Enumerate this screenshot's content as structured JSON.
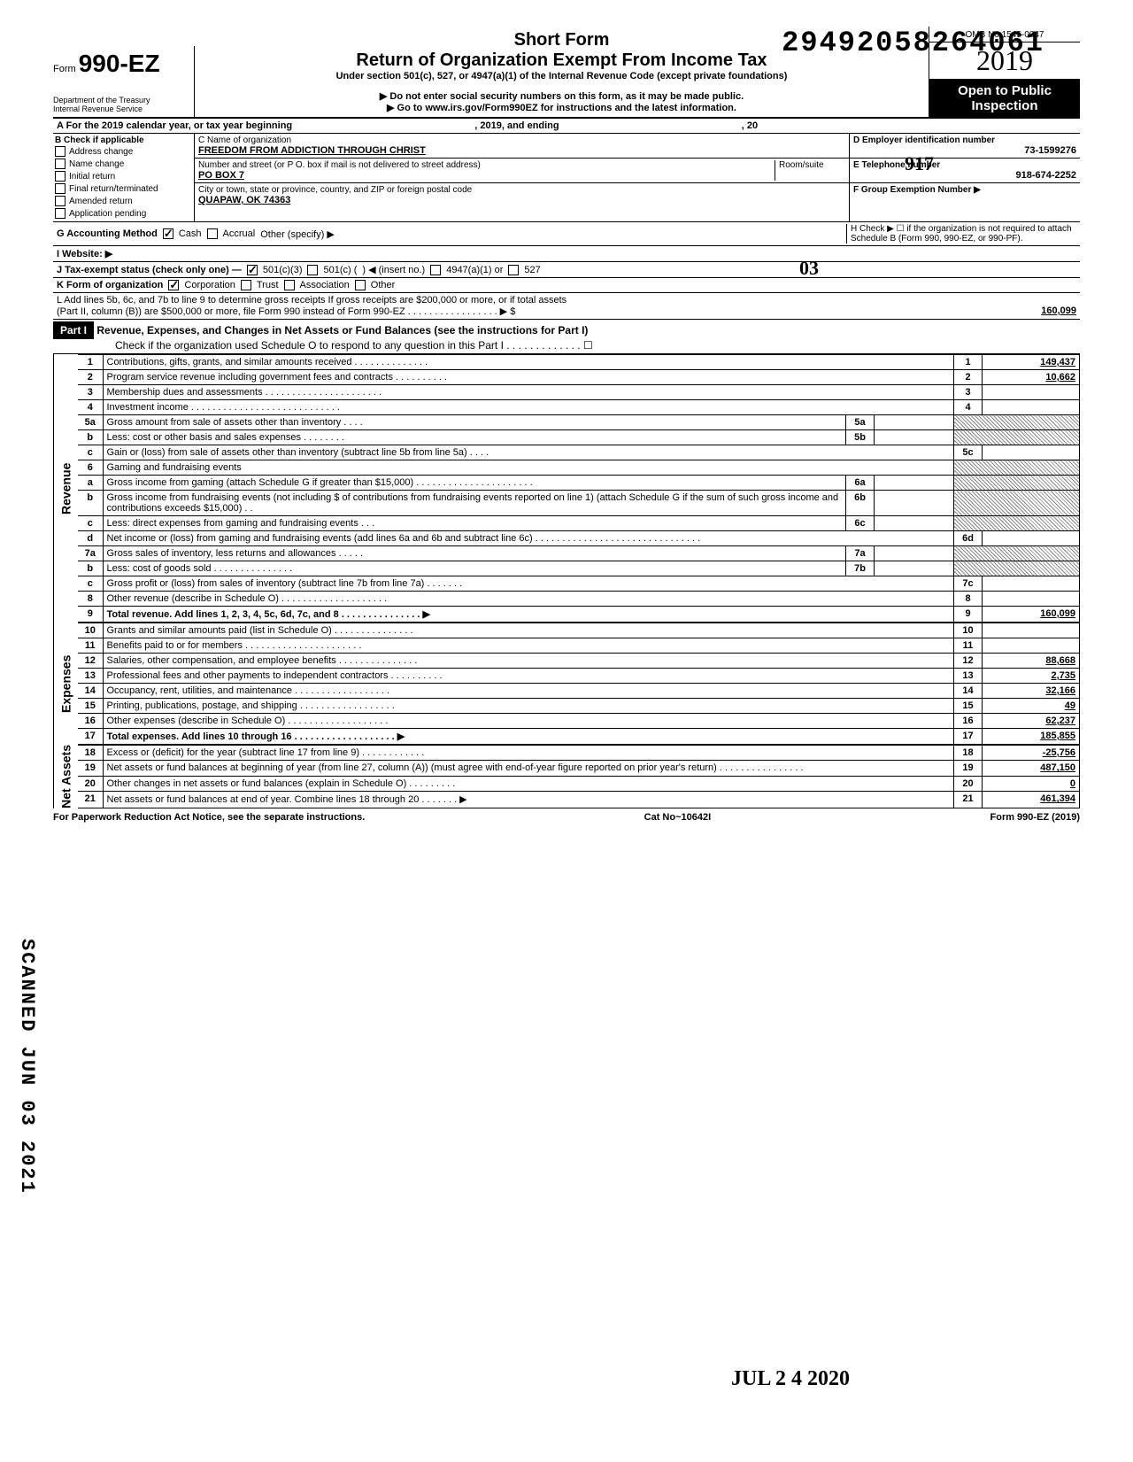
{
  "stamp_number": "29492058264061",
  "header": {
    "form_prefix": "Form",
    "form_number": "990-EZ",
    "short_title": "Short Form",
    "long_title": "Return of Organization Exempt From Income Tax",
    "subtitle": "Under section 501(c), 527, or 4947(a)(1) of the Internal Revenue Code (except private foundations)",
    "instr1": "▶ Do not enter social security numbers on this form, as it may be made public.",
    "instr2": "▶ Go to www.irs.gov/Form990EZ for instructions and the latest information.",
    "omb": "OMB No 1545-0047",
    "year": "2019",
    "open_public": "Open to Public Inspection",
    "dept1": "Department of the Treasury",
    "dept2": "Internal Revenue Service"
  },
  "pen": {
    "o3": "03",
    "n917": "917"
  },
  "calendar": {
    "label_a": "A For the 2019 calendar year, or tax year beginning",
    "mid": ", 2019, and ending",
    "end": ", 20"
  },
  "section_b": {
    "header": "B Check if applicable",
    "items": [
      "Address change",
      "Name change",
      "Initial return",
      "Final return/terminated",
      "Amended return",
      "Application pending"
    ]
  },
  "org": {
    "c_label": "C Name of organization",
    "name": "FREEDOM FROM ADDICTION THROUGH CHRIST",
    "addr_label": "Number and street (or P O. box if mail is not delivered to street address)",
    "room_label": "Room/suite",
    "street": "PO BOX 7",
    "city_label": "City or town, state or province, country, and ZIP or foreign postal code",
    "city": "QUAPAW, OK 74363"
  },
  "right": {
    "d_label": "D Employer identification number",
    "ein": "73-1599276",
    "e_label": "E Telephone number",
    "phone": "918-674-2252",
    "f_label": "F Group Exemption Number ▶"
  },
  "g": {
    "label": "G Accounting Method",
    "cash": "Cash",
    "accrual": "Accrual",
    "other": "Other (specify) ▶"
  },
  "h": {
    "text": "H Check ▶ ☐ if the organization is not required to attach Schedule B (Form 990, 990-EZ, or 990-PF)."
  },
  "i": {
    "label": "I Website: ▶"
  },
  "j": {
    "label": "J Tax-exempt status (check only one) —",
    "opt1": "501(c)(3)",
    "opt2": "501(c) (",
    "opt2b": ") ◀ (insert no.)",
    "opt3": "4947(a)(1) or",
    "opt4": "527"
  },
  "k": {
    "label": "K Form of organization",
    "corp": "Corporation",
    "trust": "Trust",
    "assoc": "Association",
    "other": "Other"
  },
  "l": {
    "text1": "L Add lines 5b, 6c, and 7b to line 9 to determine gross receipts  If gross receipts are $200,000 or more, or if total assets",
    "text2": "(Part II, column (B)) are $500,000 or more, file Form 990 instead of Form 990-EZ . . . . . . . . . . . . . . . . . ▶  $",
    "amount": "160,099"
  },
  "part1": {
    "label": "Part I",
    "title": "Revenue, Expenses, and Changes in Net Assets or Fund Balances (see the instructions for Part I)",
    "check": "Check if the organization used Schedule O to respond to any question in this Part I . . . . . . . . . . . . . ☐"
  },
  "sections": {
    "revenue": "Revenue",
    "expenses": "Expenses",
    "netassets": "Net Assets"
  },
  "lines": [
    {
      "n": "1",
      "desc": "Contributions, gifts, grants, and similar amounts received . . . . . . . . . . . . . .",
      "box": "1",
      "amt": "149,437"
    },
    {
      "n": "2",
      "desc": "Program service revenue including government fees and contracts . . . . . . . . . .",
      "box": "2",
      "amt": "10,662"
    },
    {
      "n": "3",
      "desc": "Membership dues and assessments . . . . . . . . . . . . . . . . . . . . . .",
      "box": "3",
      "amt": ""
    },
    {
      "n": "4",
      "desc": "Investment income . . . . . . . . . . . . . . . . . . . . . . . . . . . .",
      "box": "4",
      "amt": ""
    },
    {
      "n": "5a",
      "desc": "Gross amount from sale of assets other than inventory . . . .",
      "ibox": "5a",
      "shaded": true
    },
    {
      "n": "b",
      "desc": "Less: cost or other basis and sales expenses . . . . . . . .",
      "ibox": "5b",
      "shaded": true
    },
    {
      "n": "c",
      "desc": "Gain or (loss) from sale of assets other than inventory (subtract line 5b from line 5a) . . . .",
      "box": "5c",
      "amt": ""
    },
    {
      "n": "6",
      "desc": "Gaming and fundraising events",
      "shaded": true
    },
    {
      "n": "a",
      "desc": "Gross income from gaming (attach Schedule G if greater than $15,000) . . . . . . . . . . . . . . . . . . . . . .",
      "ibox": "6a",
      "shaded": true
    },
    {
      "n": "b",
      "desc": "Gross income from fundraising events (not including  $                    of contributions from fundraising events reported on line 1) (attach Schedule G if the sum of such gross income and contributions exceeds $15,000) . .",
      "ibox": "6b",
      "shaded": true
    },
    {
      "n": "c",
      "desc": "Less: direct expenses from gaming and fundraising events . . .",
      "ibox": "6c",
      "shaded": true
    },
    {
      "n": "d",
      "desc": "Net income or (loss) from gaming and fundraising events (add lines 6a and 6b and subtract line 6c) . . . . . . . . . . . . . . . . . . . . . . . . . . . . . . .",
      "box": "6d",
      "amt": ""
    },
    {
      "n": "7a",
      "desc": "Gross sales of inventory, less returns and allowances . . . . .",
      "ibox": "7a",
      "shaded": true
    },
    {
      "n": "b",
      "desc": "Less: cost of goods sold . . . . . . . . . . . . . . .",
      "ibox": "7b",
      "shaded": true
    },
    {
      "n": "c",
      "desc": "Gross profit or (loss) from sales of inventory (subtract line 7b from line 7a) . . . . . . .",
      "box": "7c",
      "amt": ""
    },
    {
      "n": "8",
      "desc": "Other revenue (describe in Schedule O) . . . . . . . . . . . . . . . . . . . .",
      "box": "8",
      "amt": ""
    },
    {
      "n": "9",
      "desc": "Total revenue. Add lines 1, 2, 3, 4, 5c, 6d, 7c, and 8 . . . . . . . . . . . . . . . ▶",
      "box": "9",
      "amt": "160,099",
      "bold": true
    }
  ],
  "exp_lines": [
    {
      "n": "10",
      "desc": "Grants and similar amounts paid (list in Schedule O) . . . . . . . . . . . . . . .",
      "box": "10",
      "amt": ""
    },
    {
      "n": "11",
      "desc": "Benefits paid to or for members . . . . . . . . . . . . . . . . . . . . . .",
      "box": "11",
      "amt": ""
    },
    {
      "n": "12",
      "desc": "Salaries, other compensation, and employee benefits . . . . . . . . . . . . . . .",
      "box": "12",
      "amt": "88,668"
    },
    {
      "n": "13",
      "desc": "Professional fees and other payments to independent contractors . . . . . . . . . .",
      "box": "13",
      "amt": "2,735"
    },
    {
      "n": "14",
      "desc": "Occupancy, rent, utilities, and maintenance . . . . . . . . . . . . . . . . . .",
      "box": "14",
      "amt": "32,166"
    },
    {
      "n": "15",
      "desc": "Printing, publications, postage, and shipping . . . . . . . . . . . . . . . . . .",
      "box": "15",
      "amt": "49"
    },
    {
      "n": "16",
      "desc": "Other expenses (describe in Schedule O) . . . . . . . . . . . . . . . . . . .",
      "box": "16",
      "amt": "62,237"
    },
    {
      "n": "17",
      "desc": "Total expenses. Add lines 10 through 16 . . . . . . . . . . . . . . . . . . . ▶",
      "box": "17",
      "amt": "185,855",
      "bold": true
    }
  ],
  "net_lines": [
    {
      "n": "18",
      "desc": "Excess or (deficit) for the year (subtract line 17 from line 9) . . . . . . . . . . . .",
      "box": "18",
      "amt": "-25,756"
    },
    {
      "n": "19",
      "desc": "Net assets or fund balances at beginning of year (from line 27, column (A)) (must agree with end-of-year figure reported on prior year's return) . . . . . . . . . . . . . . . .",
      "box": "19",
      "amt": "487,150"
    },
    {
      "n": "20",
      "desc": "Other changes in net assets or fund balances (explain in Schedule O) . . . . . . . . .",
      "box": "20",
      "amt": "0"
    },
    {
      "n": "21",
      "desc": "Net assets or fund balances at end of year. Combine lines 18 through 20 . . . . . . . ▶",
      "box": "21",
      "amt": "461,394"
    }
  ],
  "footer": {
    "left": "For Paperwork Reduction Act Notice, see the separate instructions.",
    "mid": "Cat No~10642I",
    "right": "Form 990-EZ (2019)"
  },
  "date_stamp": "JUL 2 4 2020",
  "scanned": "SCANNED JUN 03 2021"
}
